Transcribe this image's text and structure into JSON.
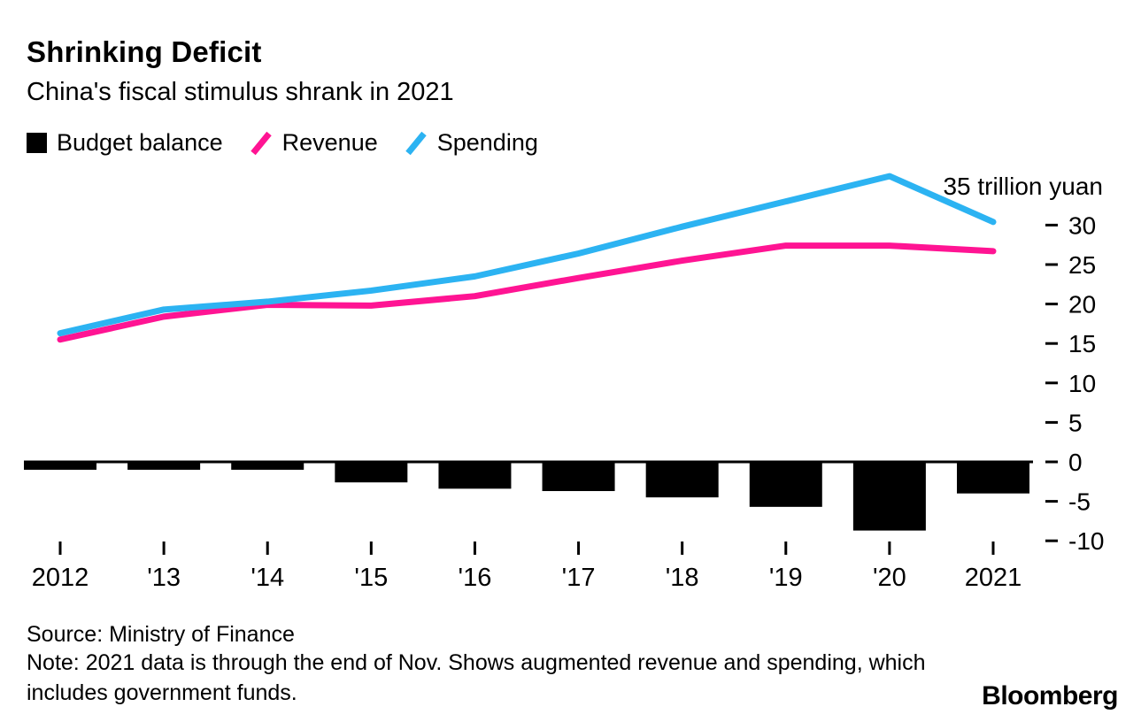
{
  "header": {
    "title": "Shrinking Deficit",
    "subtitle": "China's fiscal stimulus shrank in 2021"
  },
  "legend": [
    {
      "label": "Budget balance",
      "color": "#000000",
      "marker": "square"
    },
    {
      "label": "Revenue",
      "color": "#ff1493",
      "marker": "slash"
    },
    {
      "label": "Spending",
      "color": "#2cb3f2",
      "marker": "slash"
    }
  ],
  "chart_data": {
    "type": "combo-bar-line",
    "x_tick_labels": [
      "2012",
      "'13",
      "'14",
      "'15",
      "'16",
      "'17",
      "'18",
      "'19",
      "'20",
      "2021"
    ],
    "series": [
      {
        "name": "Budget balance",
        "type": "bar",
        "color": "#000000",
        "values": [
          -1.0,
          -1.0,
          -1.0,
          -2.6,
          -3.4,
          -3.7,
          -4.5,
          -5.7,
          -8.7,
          -4.0
        ]
      },
      {
        "name": "Revenue",
        "type": "line",
        "color": "#ff1493",
        "values": [
          15.5,
          18.4,
          19.9,
          19.8,
          21.0,
          23.3,
          25.5,
          27.4,
          27.4,
          26.7
        ]
      },
      {
        "name": "Spending",
        "type": "line",
        "color": "#2cb3f2",
        "values": [
          16.3,
          19.3,
          20.3,
          21.7,
          23.5,
          26.4,
          29.8,
          33.0,
          36.2,
          30.4
        ]
      }
    ],
    "y_ticks": [
      30,
      25,
      20,
      15,
      10,
      5,
      0,
      -5,
      -10
    ],
    "ylim": [
      -10.5,
      37
    ],
    "unit_label": "35 trillion yuan",
    "grid": false,
    "legend_position": "top-left"
  },
  "footer": {
    "source": "Source: Ministry of Finance",
    "note": "Note: 2021 data is through the end of Nov. Shows augmented revenue and spending, which includes government funds.",
    "brand": "Bloomberg"
  }
}
